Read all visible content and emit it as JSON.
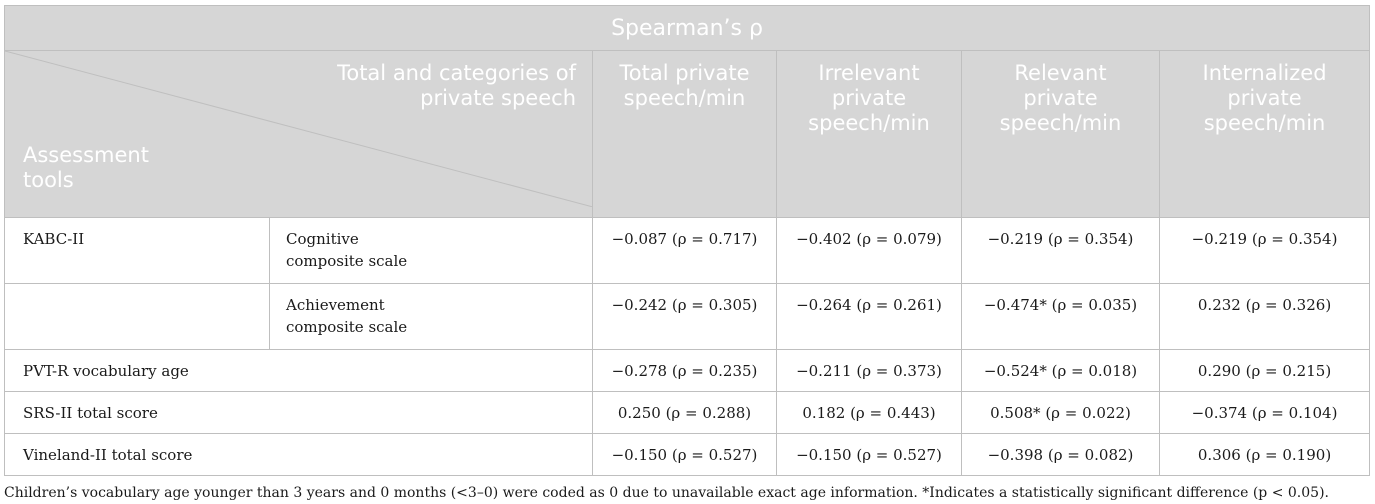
{
  "header": {
    "top": "Spearman’s ρ",
    "corner_top_line1": "Total and categories of",
    "corner_top_line2": "private speech",
    "corner_bottom_line1": "Assessment",
    "corner_bottom_line2": "tools",
    "columns": [
      {
        "l1": "Total private",
        "l2": "speech/min",
        "l3": ""
      },
      {
        "l1": "Irrelevant",
        "l2": "private",
        "l3": "speech/min"
      },
      {
        "l1": "Relevant",
        "l2": "private",
        "l3": "speech/min"
      },
      {
        "l1": "Internalized",
        "l2": "private",
        "l3": "speech/min"
      }
    ]
  },
  "rows": [
    {
      "label": "KABC-II",
      "sub1": "Cognitive",
      "sub2": "composite scale",
      "values": [
        "−0.087 (ρ = 0.717)",
        "−0.402 (ρ = 0.079)",
        "−0.219 (ρ = 0.354)",
        "−0.219 (ρ = 0.354)"
      ]
    },
    {
      "label": "",
      "sub1": "Achievement",
      "sub2": "composite scale",
      "values": [
        "−0.242 (ρ = 0.305)",
        "−0.264 (ρ = 0.261)",
        "−0.474* (ρ = 0.035)",
        "0.232 (ρ = 0.326)"
      ]
    },
    {
      "label": "PVT-R vocabulary age",
      "values": [
        "−0.278 (ρ = 0.235)",
        "−0.211 (ρ = 0.373)",
        "−0.524* (ρ = 0.018)",
        "0.290 (ρ = 0.215)"
      ]
    },
    {
      "label": "SRS-II total score",
      "values": [
        "0.250 (ρ = 0.288)",
        "0.182 (ρ = 0.443)",
        "0.508* (ρ = 0.022)",
        "−0.374 (ρ = 0.104)"
      ]
    },
    {
      "label": "Vineland-II total score",
      "values": [
        "−0.150 (ρ = 0.527)",
        "−0.150 (ρ = 0.527)",
        "−0.398 (ρ = 0.082)",
        "0.306 (ρ = 0.190)"
      ]
    }
  ],
  "footnote": "Children’s vocabulary age younger than 3 years and 0 months (<3–0) were coded as 0 due to unavailable exact age information. *Indicates a statistically significant difference (p < 0.05).",
  "colors": {
    "header_bg": "#d6d6d6",
    "header_text": "#ffffff",
    "border": "#bfbfbf"
  }
}
